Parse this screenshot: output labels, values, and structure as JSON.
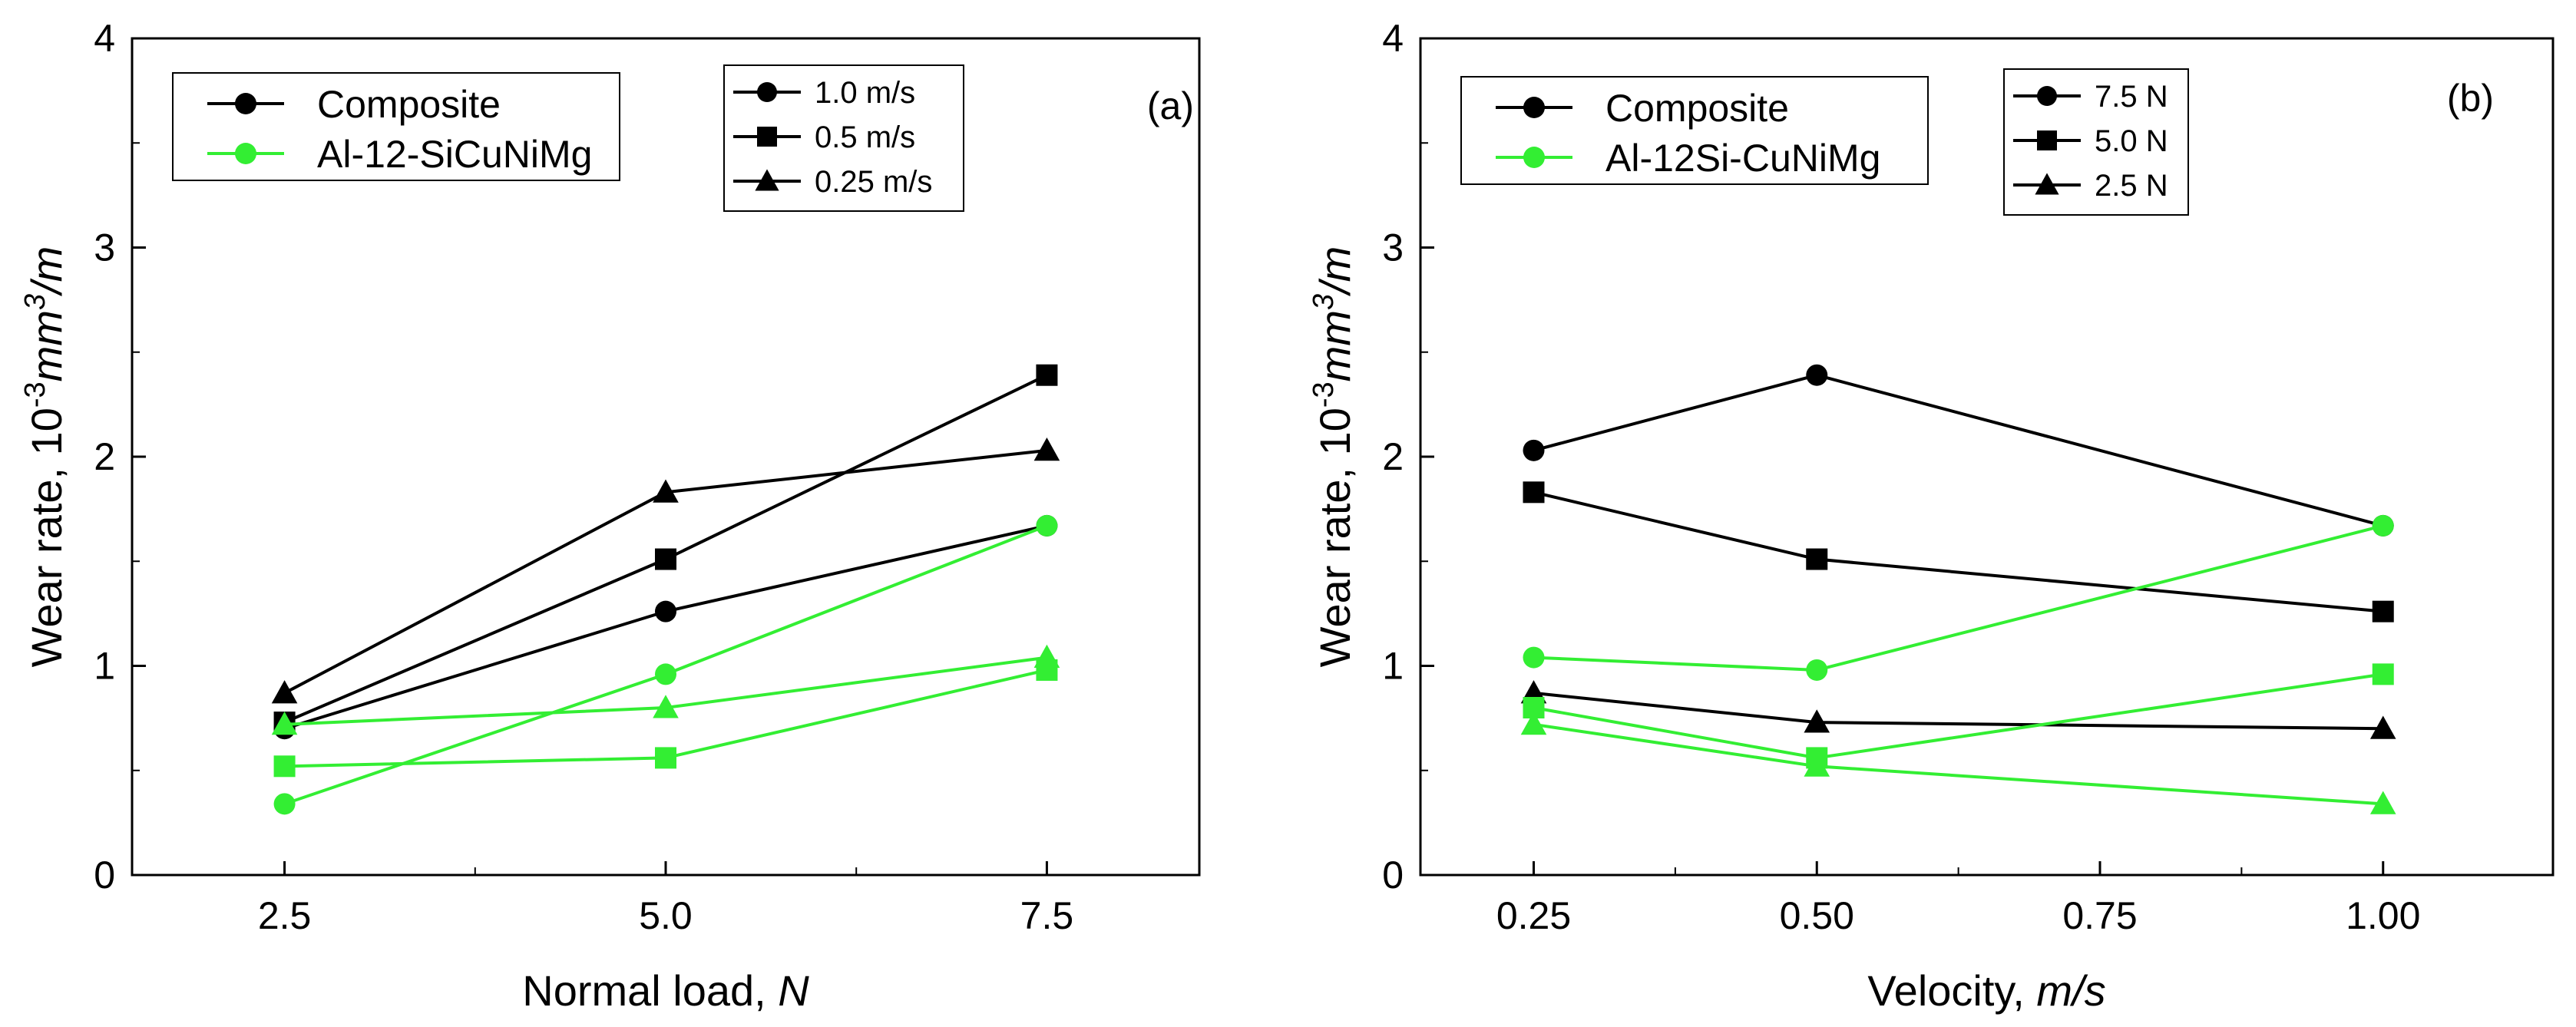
{
  "colors": {
    "composite": "#000000",
    "alloy": "#33ee33",
    "axis": "#000000"
  },
  "chart_data": [
    {
      "type": "line",
      "panel_label": "(a)",
      "xlabel_text": "Normal load,",
      "xlabel_unit": "N",
      "ylabel_text": "Wear rate, 10",
      "ylabel_exp": "-3",
      "ylabel_unit": "mm",
      "ylabel_unit_exp": "3",
      "ylabel_unit_tail": "/m",
      "xlim": [
        1.5,
        8.5
      ],
      "ylim": [
        0,
        4
      ],
      "x_ticks": [
        2.5,
        5.0,
        7.5
      ],
      "x_tick_labels": [
        "2.5",
        "5.0",
        "7.5"
      ],
      "y_ticks": [
        0,
        1,
        2,
        3,
        4
      ],
      "y_tick_labels": [
        "0",
        "1",
        "2",
        "3",
        "4"
      ],
      "material_legend": [
        {
          "label": "Composite",
          "color_key": "composite"
        },
        {
          "label": "Al-12-SiCuNiMg",
          "color_key": "alloy"
        }
      ],
      "marker_legend": [
        {
          "label": "1.0 m/s",
          "marker": "circle"
        },
        {
          "label": "0.5 m/s",
          "marker": "square"
        },
        {
          "label": "0.25 m/s",
          "marker": "triangle"
        }
      ],
      "series": [
        {
          "material": "Composite",
          "condition": "1.0 m/s",
          "marker": "circle",
          "color_key": "composite",
          "x": [
            2.5,
            5.0,
            7.5
          ],
          "y": [
            0.7,
            1.26,
            1.67
          ]
        },
        {
          "material": "Composite",
          "condition": "0.5 m/s",
          "marker": "square",
          "color_key": "composite",
          "x": [
            2.5,
            5.0,
            7.5
          ],
          "y": [
            0.73,
            1.51,
            2.39
          ]
        },
        {
          "material": "Composite",
          "condition": "0.25 m/s",
          "marker": "triangle",
          "color_key": "composite",
          "x": [
            2.5,
            5.0,
            7.5
          ],
          "y": [
            0.87,
            1.83,
            2.03
          ]
        },
        {
          "material": "Al-12-SiCuNiMg",
          "condition": "1.0 m/s",
          "marker": "circle",
          "color_key": "alloy",
          "x": [
            2.5,
            5.0,
            7.5
          ],
          "y": [
            0.34,
            0.96,
            1.67
          ]
        },
        {
          "material": "Al-12-SiCuNiMg",
          "condition": "0.5 m/s",
          "marker": "square",
          "color_key": "alloy",
          "x": [
            2.5,
            5.0,
            7.5
          ],
          "y": [
            0.52,
            0.56,
            0.98
          ]
        },
        {
          "material": "Al-12-SiCuNiMg",
          "condition": "0.25 m/s",
          "marker": "triangle",
          "color_key": "alloy",
          "x": [
            2.5,
            5.0,
            7.5
          ],
          "y": [
            0.72,
            0.8,
            1.04
          ]
        }
      ]
    },
    {
      "type": "line",
      "panel_label": "(b)",
      "xlabel_text": "Velocity,",
      "xlabel_unit": "m/s",
      "ylabel_text": "Wear rate, 10",
      "ylabel_exp": "-3",
      "ylabel_unit": "mm",
      "ylabel_unit_exp": "3",
      "ylabel_unit_tail": "/m",
      "xlim": [
        0.15,
        1.15
      ],
      "ylim": [
        0,
        4
      ],
      "x_ticks": [
        0.25,
        0.5,
        0.75,
        1.0
      ],
      "x_tick_labels": [
        "0.25",
        "0.50",
        "0.75",
        "1.00"
      ],
      "y_ticks": [
        0,
        1,
        2,
        3,
        4
      ],
      "y_tick_labels": [
        "0",
        "1",
        "2",
        "3",
        "4"
      ],
      "material_legend": [
        {
          "label": "Composite",
          "color_key": "composite"
        },
        {
          "label": "Al-12Si-CuNiMg",
          "color_key": "alloy"
        }
      ],
      "marker_legend": [
        {
          "label": "7.5 N",
          "marker": "circle"
        },
        {
          "label": "5.0 N",
          "marker": "square"
        },
        {
          "label": "2.5 N",
          "marker": "triangle"
        }
      ],
      "series": [
        {
          "material": "Composite",
          "condition": "7.5 N",
          "marker": "circle",
          "color_key": "composite",
          "x": [
            0.25,
            0.5,
            1.0
          ],
          "y": [
            2.03,
            2.39,
            1.67
          ]
        },
        {
          "material": "Composite",
          "condition": "5.0 N",
          "marker": "square",
          "color_key": "composite",
          "x": [
            0.25,
            0.5,
            1.0
          ],
          "y": [
            1.83,
            1.51,
            1.26
          ]
        },
        {
          "material": "Composite",
          "condition": "2.5 N",
          "marker": "triangle",
          "color_key": "composite",
          "x": [
            0.25,
            0.5,
            1.0
          ],
          "y": [
            0.87,
            0.73,
            0.7
          ]
        },
        {
          "material": "Al-12Si-CuNiMg",
          "condition": "7.5 N",
          "marker": "circle",
          "color_key": "alloy",
          "x": [
            0.25,
            0.5,
            1.0
          ],
          "y": [
            1.04,
            0.98,
            1.67
          ]
        },
        {
          "material": "Al-12Si-CuNiMg",
          "condition": "5.0 N",
          "marker": "square",
          "color_key": "alloy",
          "x": [
            0.25,
            0.5,
            1.0
          ],
          "y": [
            0.8,
            0.56,
            0.96
          ]
        },
        {
          "material": "Al-12Si-CuNiMg",
          "condition": "2.5 N",
          "marker": "triangle",
          "color_key": "alloy",
          "x": [
            0.25,
            0.5,
            1.0
          ],
          "y": [
            0.72,
            0.52,
            0.34
          ]
        }
      ]
    }
  ]
}
